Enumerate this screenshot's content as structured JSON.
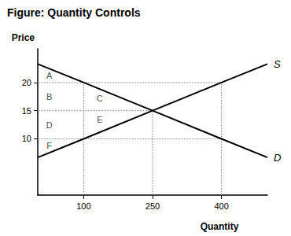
{
  "chart_data": {
    "type": "line",
    "title": "Figure: Quantity Controls",
    "x_label": "Quantity",
    "y_label": "Price",
    "xlim": [
      0,
      500
    ],
    "ylim": [
      0,
      26
    ],
    "xticks": [
      100,
      250,
      400
    ],
    "yticks": [
      10,
      15,
      20
    ],
    "grid": false,
    "series": [
      {
        "name": "S",
        "color": "#000000",
        "x": [
          0,
          100,
          250,
          400,
          500
        ],
        "values": [
          6.7,
          10,
          15,
          20,
          23.3
        ]
      },
      {
        "name": "D",
        "color": "#000000",
        "x": [
          0,
          100,
          250,
          400,
          500
        ],
        "values": [
          23.3,
          20,
          15,
          10,
          6.7
        ]
      }
    ],
    "reference_lines": [
      {
        "x": [
          0,
          400
        ],
        "y": [
          20,
          20
        ]
      },
      {
        "x": [
          0,
          250
        ],
        "y": [
          15,
          15
        ]
      },
      {
        "x": [
          0,
          400
        ],
        "y": [
          10,
          10
        ]
      },
      {
        "x": [
          100,
          100
        ],
        "y": [
          0,
          20
        ]
      },
      {
        "x": [
          250,
          250
        ],
        "y": [
          0,
          15
        ]
      },
      {
        "x": [
          400,
          400
        ],
        "y": [
          0,
          20
        ]
      }
    ],
    "annotations": [
      {
        "text": "A",
        "x": 25,
        "y": 21.3
      },
      {
        "text": "B",
        "x": 25,
        "y": 17.5
      },
      {
        "text": "C",
        "x": 135,
        "y": 17.2
      },
      {
        "text": "D",
        "x": 25,
        "y": 12.5
      },
      {
        "text": "E",
        "x": 135,
        "y": 13.4
      },
      {
        "text": "F",
        "x": 25,
        "y": 8.8
      }
    ]
  }
}
